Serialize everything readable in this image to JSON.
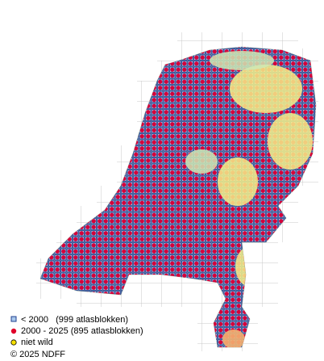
{
  "legend": {
    "items": [
      {
        "label": "< 2000   (999 atlasblokken)"
      },
      {
        "label": "2000 - 2025 (895 atlasblokken)"
      },
      {
        "label": "niet wild"
      }
    ]
  },
  "copyright": "© 2025 NDFF"
}
